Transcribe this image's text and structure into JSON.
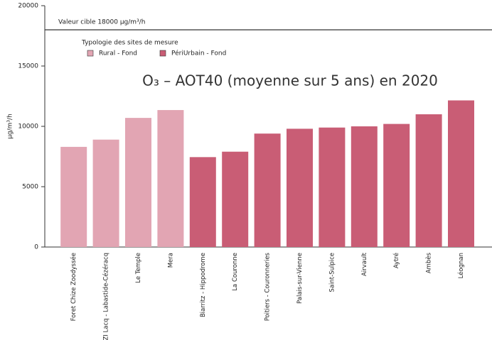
{
  "chart_data": {
    "type": "bar",
    "title": "O₃ – AOT40 (moyenne sur 5 ans) en 2020",
    "y_label": "µg/m³/h",
    "legend_title": "Typologie des sites de mesure",
    "reference_line": {
      "value": 18000,
      "label": "Valeur cible 18000 µg/m³/h"
    },
    "categories": [
      "Foret Chize Zoodyssée",
      "ZI Lacq - Labastide-Cézéracq",
      "Le Temple",
      "Mera",
      "Biarritz - Hippodrome",
      "La Couronne",
      "Poitiers - Couronneries",
      "Palais-sur-Vienne",
      "Saint-Sulpice",
      "Airvault",
      "Aytré",
      "Ambès",
      "Léognan"
    ],
    "series": [
      {
        "name": "Rural - Fond",
        "color": "#e2a5b3",
        "values": [
          8300,
          8900,
          10700,
          11350,
          null,
          null,
          null,
          null,
          null,
          null,
          null,
          null,
          null
        ]
      },
      {
        "name": "PériUrbain - Fond",
        "color": "#c95d75",
        "values": [
          null,
          null,
          null,
          null,
          7450,
          7900,
          9400,
          9800,
          9900,
          10000,
          10200,
          11000,
          12150
        ]
      }
    ],
    "ylim": [
      0,
      20000
    ],
    "yticks": [
      0,
      5000,
      10000,
      15000,
      20000
    ]
  }
}
